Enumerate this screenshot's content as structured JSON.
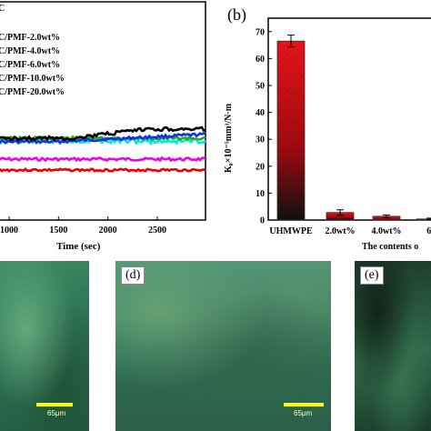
{
  "left_chart": {
    "legend": [
      "C/PMF-2.0wt%",
      "C/PMF-4.0wt%",
      "C/PMF-6.0wt%",
      "C/PMF-10.0wt%",
      "C/PMF-20.0wt%"
    ],
    "legend_top_partial": "C",
    "xlabel": "Time (sec)",
    "xticks": [
      "1000",
      "1500",
      "2000",
      "2500"
    ],
    "colors": {
      "black": "#000000",
      "green": "#22aa22",
      "blue": "#1133ee",
      "cyan": "#00e5e5",
      "magenta": "#ee00ee",
      "red": "#ee0000"
    }
  },
  "chart_data": {
    "type": "bar",
    "panel_label": "(b)",
    "categories": [
      "UHMWPE",
      "2.0wt%",
      "4.0wt%",
      "6."
    ],
    "values": [
      66.5,
      2.8,
      1.4,
      0.4
    ],
    "errors": [
      2.2,
      1.0,
      0.5,
      0.3
    ],
    "ylabel": "K₀×10⁻⁵mm³/N·m",
    "xlabel": "The contents o",
    "yticks": [
      0,
      10,
      20,
      30,
      40,
      50,
      60,
      70
    ],
    "ylim": [
      0,
      75
    ],
    "bar_color_top": "#e8141b",
    "bar_color_bottom": "#111111"
  },
  "micrographs": {
    "labels": [
      "(d)",
      "(e)"
    ],
    "scale_text": "65μm"
  }
}
